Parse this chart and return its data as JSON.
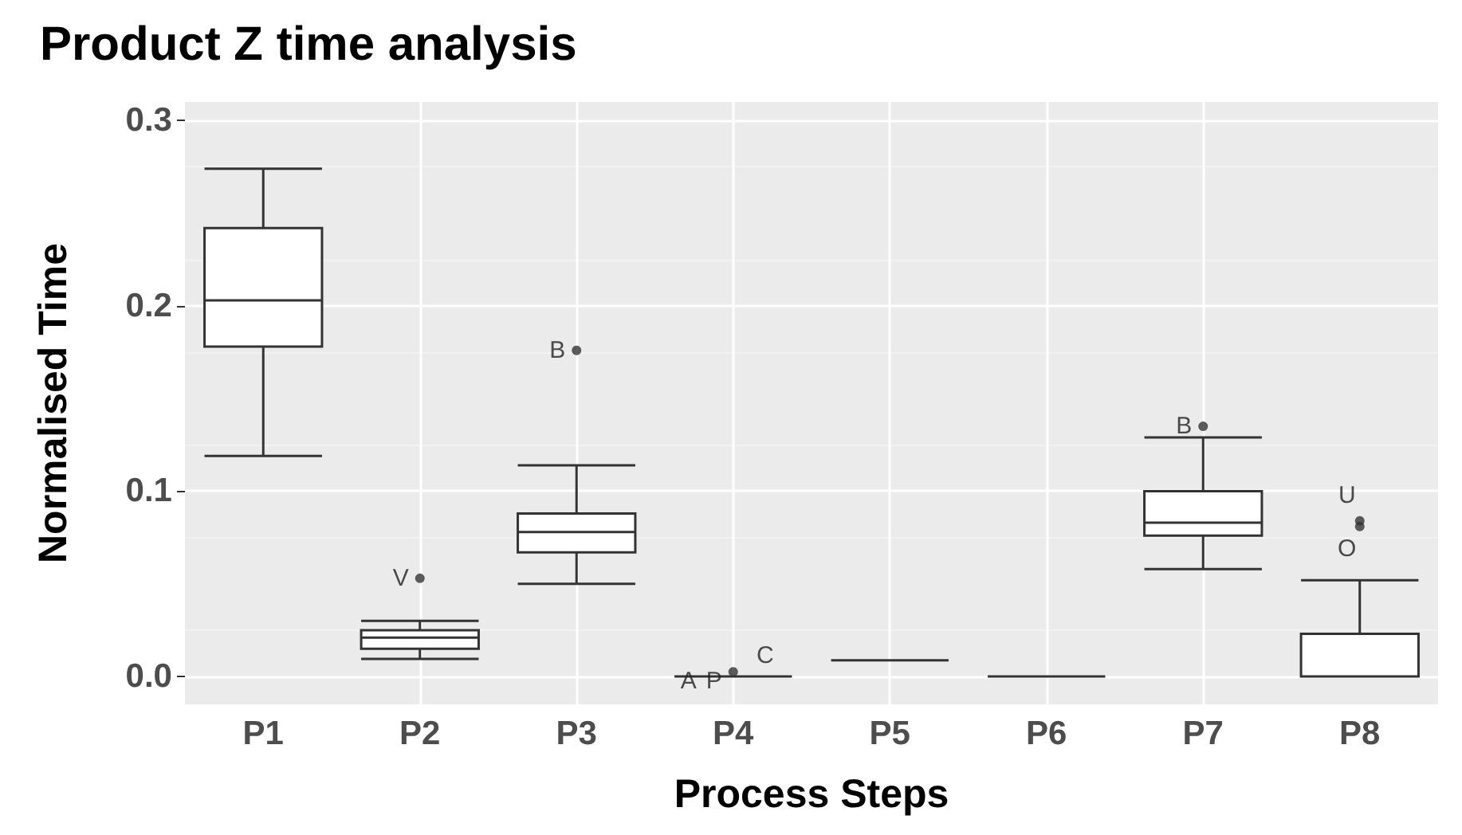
{
  "chart_data": {
    "type": "box",
    "title": "Product Z time analysis",
    "xlabel": "Process Steps",
    "ylabel": "Normalised Time",
    "categories": [
      "P1",
      "P2",
      "P3",
      "P4",
      "P5",
      "P6",
      "P7",
      "P8"
    ],
    "boxes": [
      {
        "low": 0.119,
        "q1": 0.178,
        "median": 0.203,
        "q3": 0.242,
        "high": 0.274
      },
      {
        "low": 0.0095,
        "q1": 0.015,
        "median": 0.021,
        "q3": 0.025,
        "high": 0.03
      },
      {
        "low": 0.05,
        "q1": 0.067,
        "median": 0.078,
        "q3": 0.088,
        "high": 0.114
      },
      {
        "low": 0,
        "q1": 0,
        "median": 0,
        "q3": 0,
        "high": 0
      },
      {
        "low": 0.0087,
        "q1": 0.0087,
        "median": 0.0087,
        "q3": 0.0087,
        "high": 0.0087
      },
      {
        "low": 0,
        "q1": 0,
        "median": 0,
        "q3": 0,
        "high": 0
      },
      {
        "low": 0.058,
        "q1": 0.076,
        "median": 0.083,
        "q3": 0.1,
        "high": 0.129
      },
      {
        "low": 0,
        "q1": 0,
        "median": 0,
        "q3": 0.023,
        "high": 0.052
      }
    ],
    "series": [
      {
        "type": "scatter",
        "color": "#333333",
        "x": [
          "P2",
          "P3",
          "P4",
          "P7",
          "P8",
          "P8"
        ],
        "values": [
          0.053,
          0.176,
          0.0025,
          0.135,
          0.084,
          0.081
        ]
      }
    ],
    "color": "#333333",
    "ylim": [
      -0.015,
      0.31
    ],
    "yticks": [
      {
        "value": 0,
        "label": "0.0"
      },
      {
        "value": 0.1,
        "label": "0.1"
      },
      {
        "value": 0.2,
        "label": "0.2"
      },
      {
        "value": 0.3,
        "label": "0.3"
      }
    ],
    "grid": true,
    "annotations": [
      {
        "text": "V",
        "x": "P2",
        "y": 0.053
      },
      {
        "text": "B",
        "x": "P3",
        "y": 0.176
      },
      {
        "text": "A",
        "x": "P4",
        "y": 0.0025
      },
      {
        "text": "P",
        "x": "P4",
        "y": 0.0025
      },
      {
        "text": "C",
        "x": "P4",
        "y": 0.0025
      },
      {
        "text": "B",
        "x": "P7",
        "y": 0.135
      },
      {
        "text": "U",
        "x": "P8",
        "y": 0.084
      },
      {
        "text": "O",
        "x": "P8",
        "y": 0.081
      }
    ]
  }
}
